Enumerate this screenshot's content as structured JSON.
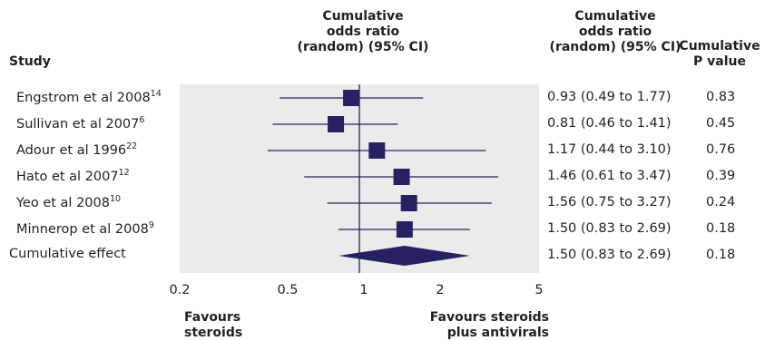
{
  "headers": {
    "study": "Study",
    "plot_header": [
      "Cumulative",
      "odds ratio",
      "(random) (95% CI)"
    ],
    "ci_header": [
      "Cumulative",
      "odds ratio",
      "(random) (95% CI)"
    ],
    "p_header": [
      "Cumulative",
      "P value"
    ]
  },
  "footer": {
    "left": [
      "Favours",
      "steroids"
    ],
    "right": [
      "Favours steroids",
      "plus antivirals"
    ]
  },
  "colors": {
    "marker": "#262262",
    "panel": "#ebebeb",
    "text": "#231f20"
  },
  "chart_data": {
    "type": "forest",
    "x_scale": "log",
    "xlim": [
      0.2,
      5
    ],
    "ticks": [
      "0.2",
      "0.5",
      "1",
      "2",
      "5"
    ],
    "reference_line": 1,
    "studies": [
      {
        "label": "Engstrom et al 2008",
        "ref": "14",
        "or": 0.93,
        "lo": 0.49,
        "hi": 1.77,
        "ci_text": "0.93 (0.49 to 1.77)",
        "p": "0.83"
      },
      {
        "label": "Sullivan et al 2007",
        "ref": "6",
        "or": 0.81,
        "lo": 0.46,
        "hi": 1.41,
        "ci_text": "0.81 (0.46 to 1.41)",
        "p": "0.45"
      },
      {
        "label": "Adour et al 1996",
        "ref": "22",
        "or": 1.17,
        "lo": 0.44,
        "hi": 3.1,
        "ci_text": "1.17 (0.44 to 3.10)",
        "p": "0.76"
      },
      {
        "label": "Hato et al 2007",
        "ref": "12",
        "or": 1.46,
        "lo": 0.61,
        "hi": 3.47,
        "ci_text": "1.46 (0.61 to 3.47)",
        "p": "0.39"
      },
      {
        "label": "Yeo et al 2008",
        "ref": "10",
        "or": 1.56,
        "lo": 0.75,
        "hi": 3.27,
        "ci_text": "1.56 (0.75 to 3.27)",
        "p": "0.24"
      },
      {
        "label": "Minnerop et al 2008",
        "ref": "9",
        "or": 1.5,
        "lo": 0.83,
        "hi": 2.69,
        "ci_text": "1.50 (0.83 to 2.69)",
        "p": "0.18"
      }
    ],
    "summary": {
      "label": "Cumulative effect",
      "or": 1.5,
      "lo": 0.83,
      "hi": 2.69,
      "ci_text": "1.50 (0.83 to 2.69)",
      "p": "0.18"
    }
  }
}
